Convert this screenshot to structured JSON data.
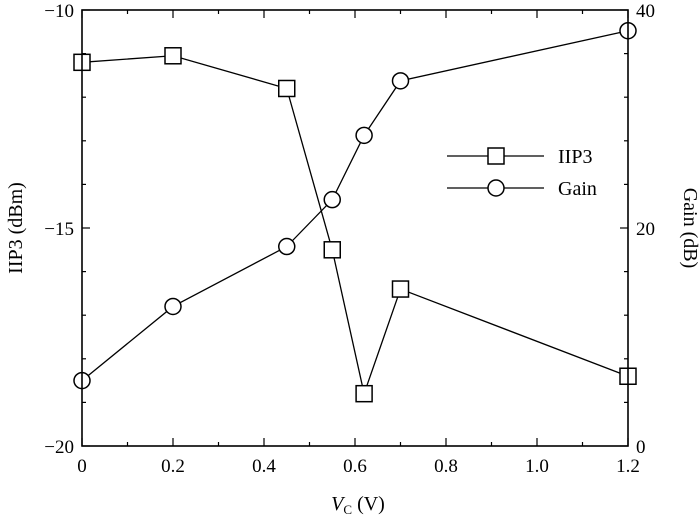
{
  "chart_data": {
    "type": "line",
    "xlabel": "V_C (V)",
    "xlabel_main": "V",
    "xlabel_sub": "C",
    "xlabel_unit": " (V)",
    "ylabel_left": "IIP3 (dBm)",
    "ylabel_right": "Gain (dB)",
    "xlim": [
      0,
      1.2
    ],
    "ylim_left": [
      -20,
      -10
    ],
    "ylim_right": [
      0,
      40
    ],
    "xticks": [
      "0",
      "0.2",
      "0.4",
      "0.6",
      "0.8",
      "1.0",
      "1.2"
    ],
    "xtick_values": [
      0,
      0.2,
      0.4,
      0.6,
      0.8,
      1.0,
      1.2
    ],
    "yticks_left": [
      "−10",
      "−15",
      "−20"
    ],
    "ytick_values_left": [
      -10,
      -15,
      -20
    ],
    "yticks_right": [
      "40",
      "20",
      "0"
    ],
    "ytick_values_right": [
      40,
      20,
      0
    ],
    "legend_position": "right-middle",
    "series": [
      {
        "name": "IIP3",
        "axis": "left",
        "marker": "square",
        "x": [
          0,
          0.2,
          0.45,
          0.55,
          0.62,
          0.7,
          1.2
        ],
        "values": [
          -11.2,
          -11.05,
          -11.8,
          -15.5,
          -18.8,
          -16.4,
          -18.4
        ]
      },
      {
        "name": "Gain",
        "axis": "right",
        "marker": "circle",
        "x": [
          0,
          0.2,
          0.45,
          0.55,
          0.62,
          0.7,
          1.2
        ],
        "values": [
          6.0,
          12.8,
          18.3,
          22.6,
          28.5,
          33.5,
          38.1
        ]
      }
    ]
  }
}
